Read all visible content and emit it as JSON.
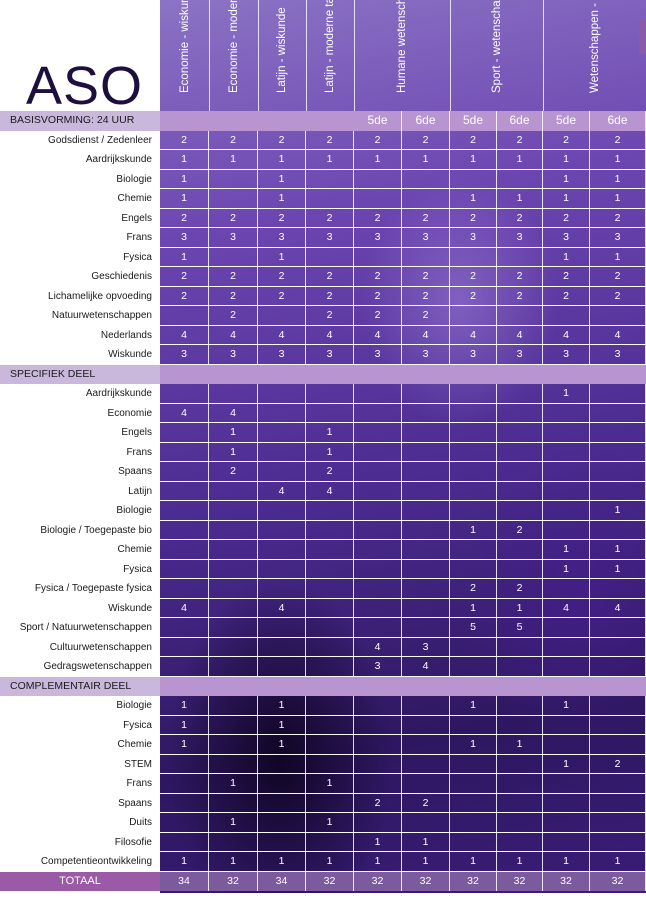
{
  "title": "ASO",
  "columns": [
    "Economie - wiskunde",
    "Economie - moderne talen",
    "Latijn - wiskunde",
    "Latijn - moderne talen",
    "Humane wetenschappen",
    "Sport - wetenschappen",
    "Wetenschappen - wiskunde"
  ],
  "years": {
    "fifth": "5de",
    "sixth": "6de"
  },
  "sections": {
    "basis": "BASISVORMING: 24 UUR",
    "specifiek": "SPECIFIEK DEEL",
    "complementair": "COMPLEMENTAIR DEEL"
  },
  "basis_rows": [
    {
      "label": "Godsdienst / Zedenleer",
      "v": [
        "2",
        "2",
        "2",
        "2",
        "2",
        "2",
        "2",
        "2",
        "2",
        "2"
      ]
    },
    {
      "label": "Aardrijkskunde",
      "v": [
        "1",
        "1",
        "1",
        "1",
        "1",
        "1",
        "1",
        "1",
        "1",
        "1"
      ]
    },
    {
      "label": "Biologie",
      "v": [
        "1",
        "",
        "1",
        "",
        "",
        "",
        "",
        "",
        "1",
        "1"
      ]
    },
    {
      "label": "Chemie",
      "v": [
        "1",
        "",
        "1",
        "",
        "",
        "",
        "1",
        "1",
        "1",
        "1"
      ]
    },
    {
      "label": "Engels",
      "v": [
        "2",
        "2",
        "2",
        "2",
        "2",
        "2",
        "2",
        "2",
        "2",
        "2"
      ]
    },
    {
      "label": "Frans",
      "v": [
        "3",
        "3",
        "3",
        "3",
        "3",
        "3",
        "3",
        "3",
        "3",
        "3"
      ]
    },
    {
      "label": "Fysica",
      "v": [
        "1",
        "",
        "1",
        "",
        "",
        "",
        "",
        "",
        "1",
        "1"
      ]
    },
    {
      "label": "Geschiedenis",
      "v": [
        "2",
        "2",
        "2",
        "2",
        "2",
        "2",
        "2",
        "2",
        "2",
        "2"
      ]
    },
    {
      "label": "Lichamelijke opvoeding",
      "v": [
        "2",
        "2",
        "2",
        "2",
        "2",
        "2",
        "2",
        "2",
        "2",
        "2"
      ]
    },
    {
      "label": "Natuurwetenschappen",
      "v": [
        "",
        "2",
        "",
        "2",
        "2",
        "2",
        "",
        "",
        "",
        ""
      ]
    },
    {
      "label": "Nederlands",
      "v": [
        "4",
        "4",
        "4",
        "4",
        "4",
        "4",
        "4",
        "4",
        "4",
        "4"
      ]
    },
    {
      "label": "Wiskunde",
      "v": [
        "3",
        "3",
        "3",
        "3",
        "3",
        "3",
        "3",
        "3",
        "3",
        "3"
      ]
    }
  ],
  "specifiek_rows": [
    {
      "label": "Aardrijkskunde",
      "v": [
        "",
        "",
        "",
        "",
        "",
        "",
        "",
        "",
        "1",
        ""
      ]
    },
    {
      "label": "Economie",
      "v": [
        "4",
        "4",
        "",
        "",
        "",
        "",
        "",
        "",
        "",
        ""
      ]
    },
    {
      "label": "Engels",
      "v": [
        "",
        "1",
        "",
        "1",
        "",
        "",
        "",
        "",
        "",
        ""
      ]
    },
    {
      "label": "Frans",
      "v": [
        "",
        "1",
        "",
        "1",
        "",
        "",
        "",
        "",
        "",
        ""
      ]
    },
    {
      "label": "Spaans",
      "v": [
        "",
        "2",
        "",
        "2",
        "",
        "",
        "",
        "",
        "",
        ""
      ]
    },
    {
      "label": "Latijn",
      "v": [
        "",
        "",
        "4",
        "4",
        "",
        "",
        "",
        "",
        "",
        ""
      ]
    },
    {
      "label": "Biologie",
      "v": [
        "",
        "",
        "",
        "",
        "",
        "",
        "",
        "",
        "",
        "1"
      ]
    },
    {
      "label": "Biologie / Toegepaste bio",
      "v": [
        "",
        "",
        "",
        "",
        "",
        "",
        "1",
        "2",
        "",
        ""
      ]
    },
    {
      "label": "Chemie",
      "v": [
        "",
        "",
        "",
        "",
        "",
        "",
        "",
        "",
        "1",
        "1"
      ]
    },
    {
      "label": "Fysica",
      "v": [
        "",
        "",
        "",
        "",
        "",
        "",
        "",
        "",
        "1",
        "1"
      ]
    },
    {
      "label": "Fysica / Toegepaste fysica",
      "v": [
        "",
        "",
        "",
        "",
        "",
        "",
        "2",
        "2",
        "",
        ""
      ]
    },
    {
      "label": "Wiskunde",
      "v": [
        "4",
        "",
        "4",
        "",
        "",
        "",
        "1",
        "1",
        "4",
        "4"
      ]
    },
    {
      "label": "Sport / Natuurwetenschappen",
      "v": [
        "",
        "",
        "",
        "",
        "",
        "",
        "5",
        "5",
        "",
        ""
      ]
    },
    {
      "label": "Cultuurwetenschappen",
      "v": [
        "",
        "",
        "",
        "",
        "4",
        "3",
        "",
        "",
        "",
        ""
      ]
    },
    {
      "label": "Gedragswetenschappen",
      "v": [
        "",
        "",
        "",
        "",
        "3",
        "4",
        "",
        "",
        "",
        ""
      ]
    }
  ],
  "complementair_rows": [
    {
      "label": "Biologie",
      "v": [
        "1",
        "",
        "1",
        "",
        "",
        "",
        "1",
        "",
        "1",
        ""
      ]
    },
    {
      "label": "Fysica",
      "v": [
        "1",
        "",
        "1",
        "",
        "",
        "",
        "",
        "",
        "",
        ""
      ]
    },
    {
      "label": "Chemie",
      "v": [
        "1",
        "",
        "1",
        "",
        "",
        "",
        "1",
        "1",
        "",
        ""
      ]
    },
    {
      "label": "STEM",
      "v": [
        "",
        "",
        "",
        "",
        "",
        "",
        "",
        "",
        "1",
        "2"
      ]
    },
    {
      "label": "Frans",
      "v": [
        "",
        "1",
        "",
        "1",
        "",
        "",
        "",
        "",
        "",
        ""
      ]
    },
    {
      "label": "Spaans",
      "v": [
        "",
        "",
        "",
        "",
        "2",
        "2",
        "",
        "",
        "",
        ""
      ]
    },
    {
      "label": "Duits",
      "v": [
        "",
        "1",
        "",
        "1",
        "",
        "",
        "",
        "",
        "",
        ""
      ]
    },
    {
      "label": "Filosofie",
      "v": [
        "",
        "",
        "",
        "",
        "1",
        "1",
        "",
        "",
        "",
        ""
      ]
    },
    {
      "label": "Competentieontwikkeling",
      "v": [
        "1",
        "1",
        "1",
        "1",
        "1",
        "1",
        "1",
        "1",
        "1",
        "1"
      ]
    }
  ],
  "total": {
    "label": "TOTAAL",
    "v": [
      "34",
      "32",
      "34",
      "32",
      "32",
      "32",
      "32",
      "32",
      "32",
      "32"
    ]
  }
}
